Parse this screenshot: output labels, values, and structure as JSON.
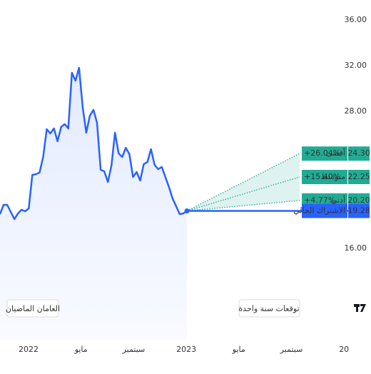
{
  "chart_data": {
    "type": "forecast",
    "history": {
      "label": "العامان الماضيان",
      "color": "#2962ff",
      "values": [
        19.0,
        19.81,
        19.81,
        19.19,
        18.56,
        19.06,
        19.38,
        19.25,
        19.5,
        22.44,
        22.5,
        22.63,
        24.0,
        26.44,
        26.06,
        26.5,
        25.38,
        26.63,
        26.88,
        26.5,
        31.38,
        30.69,
        31.81,
        28.38,
        26.13,
        27.63,
        28.13,
        27.0,
        22.88,
        22.75,
        21.81,
        23.25,
        26.13,
        24.31,
        24.0,
        24.81,
        24.25,
        22.25,
        22.69,
        21.94,
        23.38,
        23.56,
        24.69,
        23.31,
        22.94,
        23.13,
        22.25,
        21.38,
        20.38,
        19.69,
        19.0,
        19.06,
        19.28
      ]
    },
    "forecast_label": "توقعات سنة واحدة",
    "forecast_color": "#22ab94",
    "forecast": [
      {
        "name": "أقصى",
        "change": "+26.04%",
        "value": 24.3,
        "value_label": "24.30"
      },
      {
        "name": "متوسط",
        "change": "+15.40%",
        "value": 22.25,
        "value_label": "22.25"
      },
      {
        "name": "أدنى",
        "change": "+4.77%",
        "value": 20.2,
        "value_label": "20.20"
      }
    ],
    "current": {
      "name": "الاشتراك الحالي",
      "value": 19.28,
      "value_label": "19.28"
    },
    "categories": [
      "2022",
      "مايو",
      "سبتمبر",
      "2023",
      "مايو",
      "سبتمبر",
      "20"
    ],
    "ylim": [
      8,
      37.5
    ],
    "yticks": [
      {
        "value": 36,
        "label": "36.00"
      },
      {
        "value": 32,
        "label": "32.00"
      },
      {
        "value": 28,
        "label": "28.00"
      },
      {
        "value": 16,
        "label": "16.00"
      }
    ]
  }
}
